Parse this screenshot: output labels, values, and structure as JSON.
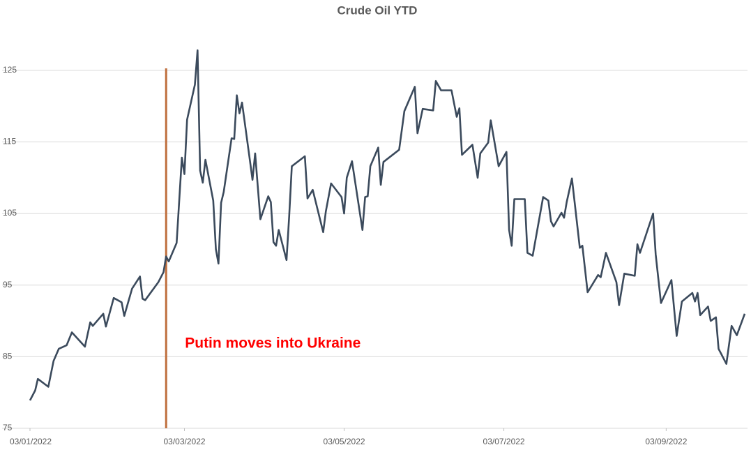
{
  "chart_data": {
    "type": "line",
    "title": "Crude Oil YTD",
    "x": [
      "2022-01-03",
      "2022-01-05",
      "2022-01-06",
      "2022-01-10",
      "2022-01-12",
      "2022-01-14",
      "2022-01-17",
      "2022-01-19",
      "2022-01-24",
      "2022-01-26",
      "2022-01-27",
      "2022-01-31",
      "2022-02-01",
      "2022-02-04",
      "2022-02-07",
      "2022-02-08",
      "2022-02-11",
      "2022-02-14",
      "2022-02-15",
      "2022-02-16",
      "2022-02-21",
      "2022-02-23",
      "2022-02-24",
      "2022-02-25",
      "2022-02-28",
      "2022-03-02",
      "2022-03-03",
      "2022-03-04",
      "2022-03-07",
      "2022-03-08",
      "2022-03-09",
      "2022-03-10",
      "2022-03-11",
      "2022-03-14",
      "2022-03-15",
      "2022-03-16",
      "2022-03-17",
      "2022-03-18",
      "2022-03-21",
      "2022-03-22",
      "2022-03-23",
      "2022-03-24",
      "2022-03-25",
      "2022-03-28",
      "2022-03-29",
      "2022-03-30",
      "2022-04-01",
      "2022-04-04",
      "2022-04-05",
      "2022-04-06",
      "2022-04-07",
      "2022-04-08",
      "2022-04-11",
      "2022-04-12",
      "2022-04-13",
      "2022-04-18",
      "2022-04-19",
      "2022-04-21",
      "2022-04-25",
      "2022-04-26",
      "2022-04-28",
      "2022-05-02",
      "2022-05-03",
      "2022-05-04",
      "2022-05-06",
      "2022-05-10",
      "2022-05-11",
      "2022-05-12",
      "2022-05-13",
      "2022-05-16",
      "2022-05-17",
      "2022-05-18",
      "2022-05-24",
      "2022-05-26",
      "2022-05-30",
      "2022-05-31",
      "2022-06-02",
      "2022-06-06",
      "2022-06-07",
      "2022-06-09",
      "2022-06-13",
      "2022-06-15",
      "2022-06-16",
      "2022-06-17",
      "2022-06-21",
      "2022-06-23",
      "2022-06-24",
      "2022-06-27",
      "2022-06-28",
      "2022-07-01",
      "2022-07-04",
      "2022-07-05",
      "2022-07-06",
      "2022-07-07",
      "2022-07-11",
      "2022-07-12",
      "2022-07-14",
      "2022-07-18",
      "2022-07-20",
      "2022-07-21",
      "2022-07-22",
      "2022-07-25",
      "2022-07-26",
      "2022-07-27",
      "2022-07-29",
      "2022-08-01",
      "2022-08-02",
      "2022-08-04",
      "2022-08-08",
      "2022-08-09",
      "2022-08-11",
      "2022-08-15",
      "2022-08-16",
      "2022-08-18",
      "2022-08-22",
      "2022-08-23",
      "2022-08-24",
      "2022-08-29",
      "2022-08-30",
      "2022-09-01",
      "2022-09-05",
      "2022-09-07",
      "2022-09-09",
      "2022-09-13",
      "2022-09-14",
      "2022-09-15",
      "2022-09-16",
      "2022-09-19",
      "2022-09-20",
      "2022-09-22",
      "2022-09-23",
      "2022-09-26",
      "2022-09-28",
      "2022-09-30",
      "2022-10-03"
    ],
    "series": [
      {
        "name": "Crude Oil",
        "color": "#3b4a5c",
        "values": [
          78.9,
          80.3,
          81.9,
          80.8,
          84.4,
          86.1,
          86.6,
          88.4,
          86.4,
          89.8,
          89.3,
          91.0,
          89.2,
          93.2,
          92.6,
          90.7,
          94.5,
          96.2,
          93.1,
          92.9,
          95.4,
          96.8,
          99.0,
          98.3,
          100.9,
          112.8,
          110.5,
          118.1,
          123.0,
          127.8,
          111.0,
          109.3,
          112.5,
          106.8,
          100.0,
          98.0,
          106.5,
          108.0,
          115.5,
          115.4,
          121.5,
          119.0,
          120.5,
          112.4,
          109.7,
          113.4,
          104.2,
          107.4,
          106.6,
          101.0,
          100.5,
          102.7,
          98.5,
          104.6,
          111.6,
          113.0,
          107.1,
          108.3,
          102.4,
          105.3,
          109.2,
          107.3,
          105.0,
          110.0,
          112.3,
          102.7,
          107.3,
          107.4,
          111.6,
          114.2,
          109.0,
          112.2,
          113.9,
          119.3,
          122.7,
          116.2,
          119.6,
          119.4,
          123.5,
          122.2,
          122.2,
          118.5,
          119.7,
          113.2,
          114.6,
          110.0,
          113.4,
          114.9,
          118.0,
          111.6,
          113.6,
          102.7,
          100.5,
          107.0,
          107.0,
          99.5,
          99.1,
          107.3,
          106.8,
          103.9,
          103.2,
          105.1,
          104.4,
          106.6,
          109.9,
          100.2,
          100.5,
          94.0,
          96.4,
          96.1,
          99.5,
          95.4,
          92.2,
          96.6,
          96.3,
          100.7,
          99.5,
          105.0,
          99.3,
          92.5,
          95.7,
          87.9,
          92.7,
          93.9,
          92.7,
          93.9,
          90.8,
          92.0,
          90.0,
          90.5,
          86.1,
          84.0,
          89.3,
          88.0,
          91.0
        ]
      }
    ],
    "xlim": [
      "2022-01-03",
      "2022-10-03"
    ],
    "xticks": [
      {
        "value": "2022-01-03",
        "label": "03/01/2022"
      },
      {
        "value": "2022-03-03",
        "label": "03/03/2022"
      },
      {
        "value": "2022-05-03",
        "label": "03/05/2022"
      },
      {
        "value": "2022-07-03",
        "label": "03/07/2022"
      },
      {
        "value": "2022-09-03",
        "label": "03/09/2022"
      }
    ],
    "ylim": [
      75,
      128
    ],
    "yticks": [
      75,
      85,
      95,
      105,
      115,
      125
    ],
    "grid": true,
    "annotations": [
      {
        "text": "Putin moves into Ukraine",
        "x": "2022-02-24",
        "color": "#ff0000",
        "line_color": "#c0703f"
      }
    ]
  }
}
